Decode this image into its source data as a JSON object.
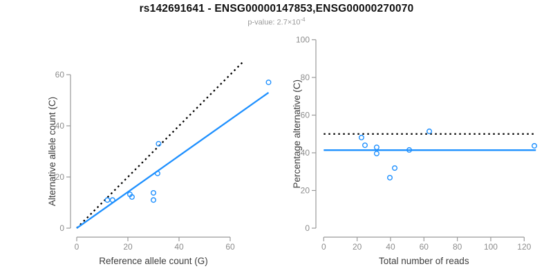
{
  "header": {
    "title": "rs142691641 - ENSG00000147853,ENSG00000270070",
    "subtitle_text": "p-value: 2.7×10",
    "subtitle_exponent": "-4"
  },
  "colors": {
    "accent_blue": "#1E90FF",
    "dotted_black": "#000000",
    "axis_line": "#999999",
    "tick_label": "#8c8c8c",
    "axis_title": "#3c3c3c",
    "title": "#111111",
    "subtitle": "#9a9a9a"
  },
  "chart_data": [
    {
      "type": "scatter",
      "name": "allele-counts-scatter",
      "xlabel": "Reference allele count (G)",
      "ylabel": "Alternative allele count (C)",
      "xticks": [
        0,
        20,
        40,
        60
      ],
      "yticks": [
        0,
        20,
        40,
        60
      ],
      "xlim": [
        0,
        75
      ],
      "ylim": [
        0,
        65
      ],
      "grid": false,
      "points": [
        [
          12,
          11
        ],
        [
          14,
          11
        ],
        [
          20.8,
          13.2
        ],
        [
          21.6,
          12.2
        ],
        [
          30,
          13.8
        ],
        [
          30,
          11
        ],
        [
          31.6,
          21.4
        ],
        [
          32,
          33
        ],
        [
          75,
          57
        ]
      ],
      "lines": [
        {
          "name": "identity-line",
          "style": "dotted",
          "color": "#000000",
          "from": [
            0,
            0
          ],
          "to": [
            65,
            65
          ]
        },
        {
          "name": "fit-line",
          "style": "solid",
          "color": "#1E90FF",
          "from": [
            0,
            0
          ],
          "to": [
            75,
            53
          ]
        }
      ]
    },
    {
      "type": "scatter",
      "name": "percentage-alternative-scatter",
      "xlabel": "Total number of reads",
      "ylabel": "Percentage alternative (C)",
      "xticks": [
        0,
        20,
        40,
        60,
        80,
        100,
        120
      ],
      "yticks": [
        0,
        20,
        40,
        60,
        80,
        100
      ],
      "xlim": [
        0,
        130
      ],
      "ylim": [
        0,
        100
      ],
      "grid": false,
      "points": [
        [
          22.6,
          48.1
        ],
        [
          24.7,
          44.0
        ],
        [
          31.7,
          42.9
        ],
        [
          31.7,
          39.6
        ],
        [
          39.6,
          26.8
        ],
        [
          42.5,
          31.9
        ],
        [
          51.2,
          41.5
        ],
        [
          63.2,
          51.4
        ],
        [
          126.1,
          43.7
        ]
      ],
      "lines": [
        {
          "name": "expected-50pct-line",
          "style": "dotted",
          "color": "#000000",
          "from": [
            0,
            50
          ],
          "to": [
            127,
            50
          ]
        },
        {
          "name": "mean-percentage-line",
          "style": "solid",
          "color": "#1E90FF",
          "from": [
            0,
            41.4
          ],
          "to": [
            127,
            41.4
          ]
        }
      ]
    }
  ]
}
